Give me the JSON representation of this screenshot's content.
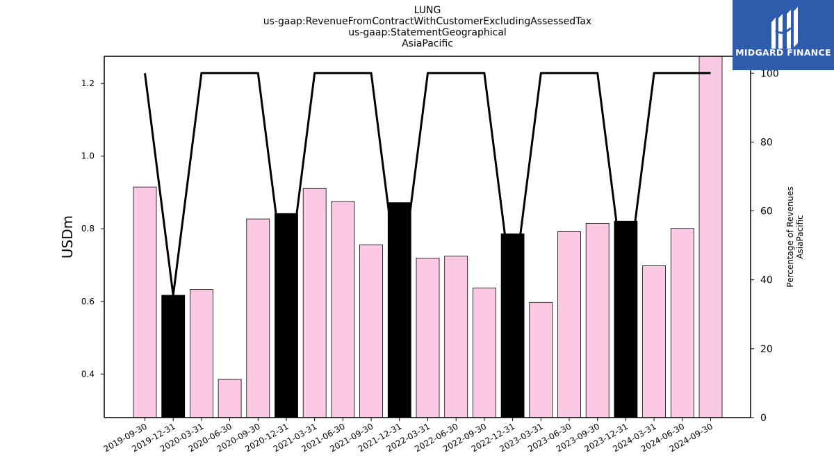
{
  "header": {
    "title_lines": [
      "LUNG",
      "us-gaap:RevenueFromContractWithCustomerExcludingAssessedTax",
      "us-gaap:StatementGeographical",
      "AsiaPacific"
    ]
  },
  "logo": {
    "text": "MIDGARD FINANCE",
    "background": "#2f5bad"
  },
  "chart_data": {
    "type": "bar",
    "categories": [
      "2019-09-30",
      "2019-12-31",
      "2020-03-31",
      "2020-06-30",
      "2020-09-30",
      "2020-12-31",
      "2021-03-31",
      "2021-06-30",
      "2021-09-30",
      "2021-12-31",
      "2022-03-31",
      "2022-06-30",
      "2022-09-30",
      "2022-12-31",
      "2023-03-31",
      "2023-06-30",
      "2023-09-30",
      "2023-12-31",
      "2024-03-31",
      "2024-06-30",
      "2024-09-30"
    ],
    "series": [
      {
        "axis": "left",
        "kind": "bar",
        "values": [
          0.915,
          0.617,
          0.633,
          0.385,
          0.827,
          0.842,
          0.911,
          0.875,
          0.756,
          0.872,
          0.719,
          0.725,
          0.637,
          0.786,
          0.597,
          0.792,
          0.815,
          0.821,
          0.698,
          0.801,
          1.28
        ],
        "colors": [
          "#fbc9e3",
          "#000000",
          "#fbc9e3",
          "#fbc9e3",
          "#fbc9e3",
          "#000000",
          "#fbc9e3",
          "#fbc9e3",
          "#fbc9e3",
          "#000000",
          "#fbc9e3",
          "#fbc9e3",
          "#fbc9e3",
          "#000000",
          "#fbc9e3",
          "#fbc9e3",
          "#fbc9e3",
          "#000000",
          "#fbc9e3",
          "#fbc9e3",
          "#fbc9e3"
        ]
      },
      {
        "axis": "right",
        "kind": "line",
        "color": "#000000",
        "values": [
          100,
          35.5,
          100,
          100,
          100,
          35.5,
          100,
          100,
          100,
          35.5,
          100,
          100,
          100,
          35.5,
          100,
          100,
          100,
          35.5,
          100,
          100,
          100
        ]
      }
    ],
    "ylabel": "USDm",
    "ylim": [
      0.28,
      1.275
    ],
    "yticks": [
      0.4,
      0.6,
      0.8,
      1.0,
      1.2
    ],
    "ytick_labels": [
      "0.4",
      "0.6",
      "0.8",
      "1.0",
      "1.2"
    ],
    "y2label_lines": [
      "Percentage of Revenues",
      "AsiaPacific"
    ],
    "y2lim": [
      0,
      104.9
    ],
    "y2ticks": [
      0,
      20,
      40,
      60,
      80,
      100
    ],
    "y2tick_labels": [
      "0",
      "20",
      "40",
      "60",
      "80",
      "100"
    ],
    "grid": false,
    "legend": "none"
  }
}
